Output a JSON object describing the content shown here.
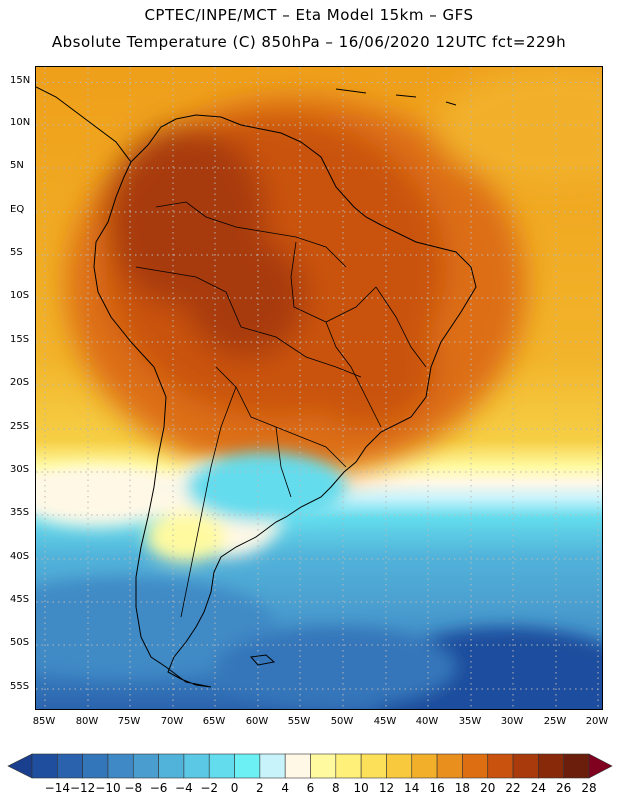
{
  "header": {
    "line1": "CPTEC/INPE/MCT –  Eta Model 15km – GFS",
    "line2": "Absolute Temperature (C) 850hPa – 16/06/2020 12UTC fct=229h"
  },
  "map": {
    "lat_labels": [
      "15N",
      "10N",
      "5N",
      "EQ",
      "5S",
      "10S",
      "15S",
      "20S",
      "25S",
      "30S",
      "35S",
      "40S",
      "45S",
      "50S",
      "55S"
    ],
    "lon_labels": [
      "85W",
      "80W",
      "75W",
      "70W",
      "65W",
      "60W",
      "55W",
      "50W",
      "45W",
      "40W",
      "35W",
      "30W",
      "25W",
      "20W"
    ]
  },
  "colorbar": {
    "labels": [
      "-14",
      "-12",
      "-10",
      "-8",
      "-6",
      "-4",
      "-2",
      "0",
      "2",
      "4",
      "6",
      "8",
      "10",
      "12",
      "14",
      "16",
      "18",
      "20",
      "22",
      "24",
      "26",
      "28"
    ],
    "colors": [
      "#1a3f8f",
      "#1f4e9e",
      "#2a62ad",
      "#3476ba",
      "#3f8ac6",
      "#4a9ecf",
      "#52b3da",
      "#5bc8e5",
      "#63dced",
      "#6cf0f4",
      "#c8f3fb",
      "#fff8e6",
      "#fffaa0",
      "#fff07a",
      "#fde05a",
      "#f9c93d",
      "#f2b02a",
      "#e98f1e",
      "#dd6e12",
      "#c9520e",
      "#a83a0c",
      "#882a0a",
      "#6b1e0b",
      "#800020"
    ]
  }
}
